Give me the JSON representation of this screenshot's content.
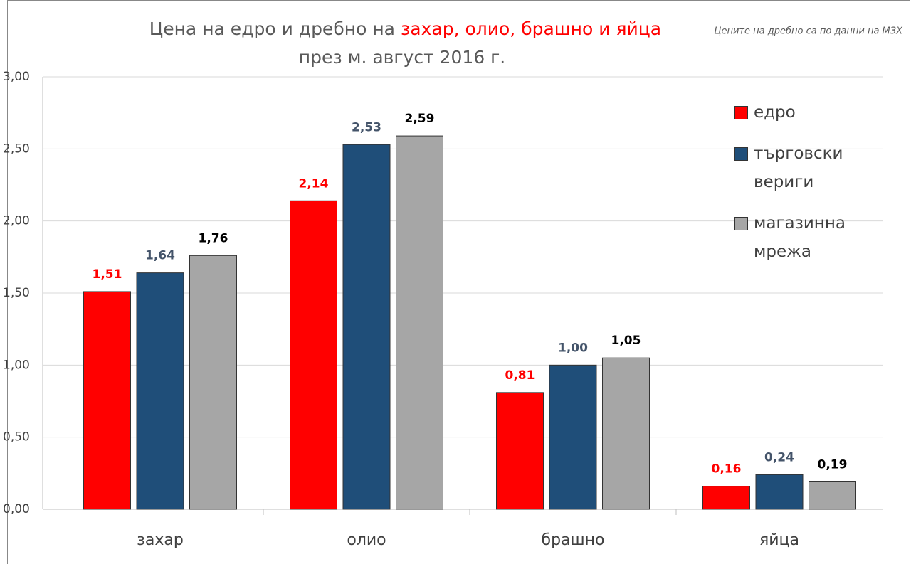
{
  "chart_data": {
    "type": "bar",
    "title": [
      "Цена на едро и дребно на",
      "захар, олио, брашно и яйца"
    ],
    "subtitle": "през м. август 2016 г.",
    "annotation": "Цените на дребно са по данни на МЗХ",
    "categories": [
      "захар",
      "олио",
      "брашно",
      "яйца"
    ],
    "series": [
      {
        "name": "едро",
        "color": "#ff0000",
        "label_color": "#ff0000",
        "values": [
          1.51,
          2.14,
          0.81,
          0.16
        ],
        "value_labels": [
          "1,51",
          "2,14",
          "0,81",
          "0,16"
        ]
      },
      {
        "name": "търговски вериги",
        "color": "#1f4e79",
        "label_color": "#44546a",
        "values": [
          1.64,
          2.53,
          1.0,
          0.24
        ],
        "value_labels": [
          "1,64",
          "2,53",
          "1,00",
          "0,24"
        ]
      },
      {
        "name": "магазинна мрежа",
        "color": "#a6a6a6",
        "label_color": "#000000",
        "values": [
          1.76,
          2.59,
          1.05,
          0.19
        ],
        "value_labels": [
          "1,76",
          "2,59",
          "1,05",
          "0,19"
        ]
      }
    ],
    "ylim": [
      0,
      3
    ],
    "yticks": [
      {
        "value": 0,
        "label": "0,00"
      },
      {
        "value": 0.5,
        "label": "0,50"
      },
      {
        "value": 1,
        "label": "1,00"
      },
      {
        "value": 1.5,
        "label": "1,50"
      },
      {
        "value": 2,
        "label": "2,00"
      },
      {
        "value": 2.5,
        "label": "2,50"
      },
      {
        "value": 3,
        "label": "3,00"
      }
    ],
    "grid": true
  }
}
